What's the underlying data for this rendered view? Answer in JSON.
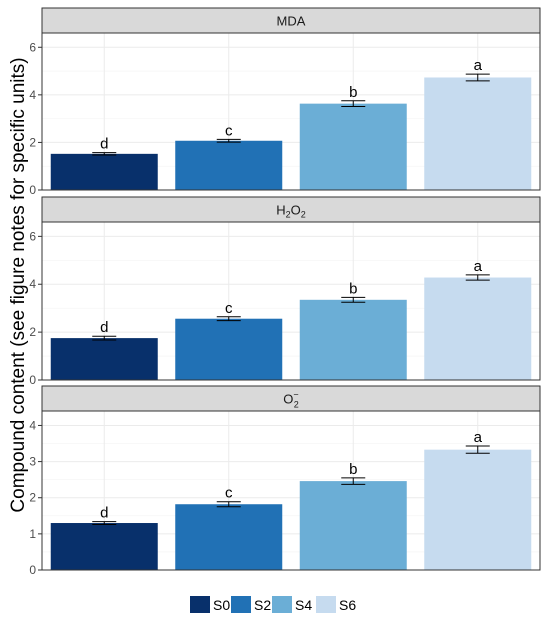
{
  "colors": {
    "S0": "#08306b",
    "S2": "#2171b5",
    "S4": "#6baed6",
    "S6": "#c6dbef",
    "strip_bg": "#d9d9d9",
    "grid": "#ebebeb"
  },
  "chart_data": {
    "type": "bar",
    "ylabel": "Compound content (see figure notes for specific units)",
    "categories": [
      "S0",
      "S2",
      "S4",
      "S6"
    ],
    "legend": {
      "position": "bottom",
      "entries": [
        "S0",
        "S2",
        "S4",
        "S6"
      ]
    },
    "grid": true,
    "panels": [
      {
        "title": "MDA",
        "ylim": [
          0,
          6.6
        ],
        "yticks": [
          0,
          2,
          4,
          6
        ],
        "values": [
          1.52,
          2.07,
          3.63,
          4.73
        ],
        "errors": [
          0.05,
          0.06,
          0.12,
          0.14
        ],
        "letters": [
          "d",
          "c",
          "b",
          "a"
        ]
      },
      {
        "title": "H2O2",
        "title_parts": {
          "base": "H",
          "sub1": "2",
          "mid": "O",
          "sub2": "2"
        },
        "ylim": [
          0,
          6.6
        ],
        "yticks": [
          0,
          2,
          4,
          6
        ],
        "values": [
          1.75,
          2.56,
          3.35,
          4.28
        ],
        "errors": [
          0.08,
          0.08,
          0.1,
          0.11
        ],
        "letters": [
          "d",
          "c",
          "b",
          "a"
        ]
      },
      {
        "title": "O2−",
        "title_parts": {
          "base": "O",
          "sub": "2",
          "sup": "−"
        },
        "ylim": [
          0,
          4.4
        ],
        "yticks": [
          0,
          1,
          2,
          3,
          4
        ],
        "values": [
          1.3,
          1.82,
          2.46,
          3.33
        ],
        "errors": [
          0.04,
          0.07,
          0.09,
          0.1
        ],
        "letters": [
          "d",
          "c",
          "b",
          "a"
        ]
      }
    ]
  }
}
